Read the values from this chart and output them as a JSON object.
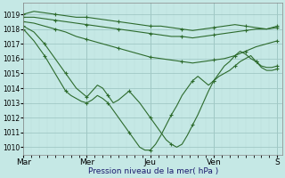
{
  "background_color": "#c5e8e5",
  "grid_color_major": "#a0c8c5",
  "grid_color_minor": "#b8ddd9",
  "line_color": "#2d6b2d",
  "ylim": [
    1009.5,
    1019.8
  ],
  "ylabel_ticks": [
    1010,
    1011,
    1012,
    1013,
    1014,
    1015,
    1016,
    1017,
    1018,
    1019
  ],
  "xlabel": "Pression niveau de la mer( hPa )",
  "xlabel_color": "#1a1a6e",
  "xtick_labels": [
    "Mar",
    "Mer",
    "Jeu",
    "Ven",
    "S"
  ],
  "xtick_positions": [
    0,
    48,
    96,
    144,
    192
  ],
  "total_hours": 196,
  "series": [
    {
      "x": [
        0,
        8,
        16,
        24,
        32,
        40,
        48,
        56,
        64,
        72,
        80,
        88,
        96,
        104,
        112,
        120,
        128,
        136,
        144,
        152,
        160,
        168,
        176,
        184,
        192
      ],
      "y": [
        1019.0,
        1019.2,
        1019.1,
        1019.0,
        1018.9,
        1018.8,
        1018.8,
        1018.7,
        1018.6,
        1018.5,
        1018.4,
        1018.3,
        1018.2,
        1018.2,
        1018.1,
        1018.0,
        1017.9,
        1018.0,
        1018.1,
        1018.2,
        1018.3,
        1018.2,
        1018.1,
        1018.0,
        1018.2
      ],
      "marker_step": 3
    },
    {
      "x": [
        0,
        8,
        16,
        24,
        32,
        40,
        48,
        56,
        64,
        72,
        80,
        88,
        96,
        104,
        112,
        120,
        128,
        136,
        144,
        152,
        160,
        168,
        176,
        184,
        192
      ],
      "y": [
        1018.8,
        1018.8,
        1018.7,
        1018.6,
        1018.5,
        1018.4,
        1018.3,
        1018.2,
        1018.1,
        1018.0,
        1017.9,
        1017.8,
        1017.7,
        1017.6,
        1017.5,
        1017.5,
        1017.4,
        1017.5,
        1017.6,
        1017.7,
        1017.8,
        1017.9,
        1018.0,
        1018.0,
        1018.1
      ],
      "marker_step": 3
    },
    {
      "x": [
        0,
        8,
        16,
        24,
        32,
        40,
        48,
        56,
        64,
        72,
        80,
        88,
        96,
        104,
        112,
        120,
        128,
        136,
        144,
        152,
        160,
        168,
        176,
        184,
        192
      ],
      "y": [
        1018.5,
        1018.4,
        1018.2,
        1018.0,
        1017.8,
        1017.5,
        1017.3,
        1017.1,
        1016.9,
        1016.7,
        1016.5,
        1016.3,
        1016.1,
        1016.0,
        1015.9,
        1015.8,
        1015.7,
        1015.8,
        1015.9,
        1016.0,
        1016.2,
        1016.5,
        1016.8,
        1017.0,
        1017.2
      ],
      "marker_step": 3
    },
    {
      "x": [
        0,
        4,
        8,
        12,
        16,
        20,
        24,
        28,
        32,
        36,
        40,
        44,
        48,
        52,
        56,
        60,
        64,
        68,
        72,
        76,
        80,
        84,
        88,
        92,
        96,
        100,
        104,
        108,
        112,
        116,
        120,
        124,
        128,
        132,
        136,
        140,
        144,
        148,
        152,
        156,
        160,
        164,
        168,
        172,
        176,
        180,
        184,
        188,
        192
      ],
      "y": [
        1018.2,
        1018.0,
        1017.8,
        1017.4,
        1017.0,
        1016.5,
        1016.0,
        1015.5,
        1015.0,
        1014.5,
        1014.0,
        1013.7,
        1013.4,
        1013.8,
        1014.2,
        1014.0,
        1013.5,
        1013.0,
        1013.2,
        1013.5,
        1013.8,
        1013.4,
        1013.0,
        1012.5,
        1012.0,
        1011.5,
        1011.0,
        1010.5,
        1010.2,
        1010.0,
        1010.2,
        1010.8,
        1011.5,
        1012.2,
        1013.0,
        1013.8,
        1014.5,
        1015.0,
        1015.5,
        1015.8,
        1016.2,
        1016.5,
        1016.3,
        1016.0,
        1015.8,
        1015.5,
        1015.4,
        1015.4,
        1015.5
      ],
      "marker_step": 4
    },
    {
      "x": [
        0,
        4,
        8,
        12,
        16,
        20,
        24,
        28,
        32,
        36,
        40,
        44,
        48,
        52,
        56,
        60,
        64,
        68,
        72,
        76,
        80,
        84,
        88,
        92,
        96,
        100,
        104,
        108,
        112,
        116,
        120,
        124,
        128,
        132,
        136,
        140,
        144,
        148,
        152,
        156,
        160,
        164,
        168,
        172,
        176,
        180,
        184,
        188,
        192
      ],
      "y": [
        1018.0,
        1017.6,
        1017.2,
        1016.7,
        1016.2,
        1015.6,
        1015.0,
        1014.4,
        1013.8,
        1013.5,
        1013.3,
        1013.1,
        1013.0,
        1013.2,
        1013.5,
        1013.3,
        1013.0,
        1012.5,
        1012.0,
        1011.5,
        1011.0,
        1010.5,
        1010.0,
        1009.8,
        1009.8,
        1010.2,
        1010.8,
        1011.5,
        1012.2,
        1012.8,
        1013.5,
        1014.0,
        1014.5,
        1014.8,
        1014.5,
        1014.2,
        1014.5,
        1014.8,
        1015.0,
        1015.2,
        1015.5,
        1015.8,
        1016.0,
        1016.2,
        1015.8,
        1015.4,
        1015.2,
        1015.2,
        1015.3
      ],
      "marker_step": 4
    }
  ]
}
